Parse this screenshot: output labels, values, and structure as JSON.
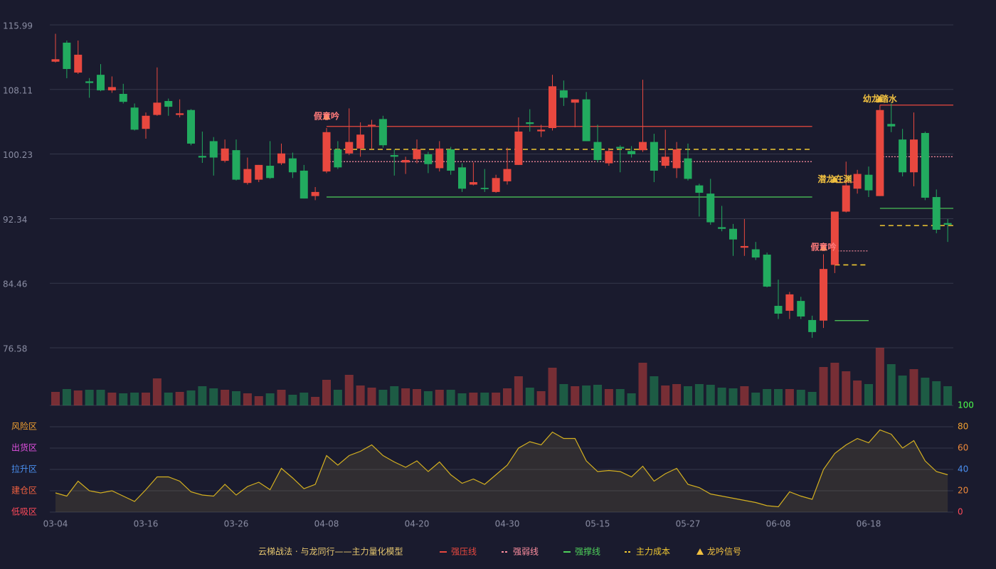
{
  "chart_data": {
    "type": "candlestick",
    "categories": [
      "03-04",
      null,
      null,
      null,
      null,
      null,
      null,
      null,
      "03-16",
      null,
      null,
      null,
      null,
      null,
      null,
      null,
      "03-26",
      null,
      null,
      null,
      null,
      null,
      null,
      null,
      "04-08",
      null,
      null,
      null,
      null,
      null,
      null,
      null,
      "04-20",
      null,
      null,
      null,
      null,
      null,
      null,
      null,
      "04-30",
      null,
      null,
      null,
      null,
      null,
      null,
      null,
      "05-15",
      null,
      null,
      null,
      null,
      null,
      null,
      null,
      "05-27",
      null,
      null,
      null,
      null,
      null,
      null,
      null,
      "06-08",
      null,
      null,
      null,
      null,
      null,
      null,
      null,
      "06-18",
      null,
      null,
      null,
      null,
      null,
      null,
      null
    ],
    "open": [
      111.5,
      113.82,
      110.17,
      109.1,
      109.9,
      108.0,
      107.57,
      105.9,
      103.3,
      105.0,
      106.7,
      105.0,
      105.6,
      100.0,
      101.8,
      99.4,
      100.7,
      96.7,
      97.1,
      98.8,
      99.1,
      99.7,
      98.2,
      95.1,
      98.1,
      100.8,
      100.3,
      100.9,
      103.7,
      104.5,
      100.1,
      99.2,
      99.6,
      100.2,
      98.5,
      100.8,
      98.6,
      96.5,
      96.1,
      95.6,
      96.9,
      98.9,
      104.1,
      103.0,
      103.4,
      108.0,
      106.5,
      106.9,
      101.7,
      99.1,
      101.1,
      100.6,
      100.7,
      101.7,
      98.8,
      98.5,
      99.7,
      96.4,
      95.4,
      91.3,
      91.1,
      88.8,
      88.6,
      87.95,
      81.7,
      81.1,
      82.3,
      79.97,
      79.9,
      86.7,
      93.2,
      96.0,
      97.7,
      95.1,
      103.9,
      102.0,
      98.0,
      102.8,
      94.98,
      91.8
    ],
    "high": [
      114.9,
      114.08,
      114.08,
      109.5,
      111.2,
      109.7,
      108.8,
      106.4,
      105.3,
      110.8,
      107.0,
      106.9,
      105.7,
      102.97,
      102.3,
      102.0,
      102.0,
      99.8,
      98.9,
      101.8,
      101.5,
      100.4,
      98.9,
      96.2,
      103.4,
      101.8,
      105.8,
      104.1,
      104.4,
      104.9,
      100.8,
      99.9,
      102.0,
      100.5,
      101.8,
      101.1,
      99.1,
      99.2,
      98.4,
      97.7,
      101.0,
      104.7,
      105.7,
      103.8,
      109.9,
      109.2,
      106.9,
      107.8,
      103.8,
      100.97,
      101.3,
      101.2,
      109.3,
      102.7,
      103.2,
      101.7,
      101.5,
      96.6,
      97.2,
      93.9,
      91.7,
      92.3,
      89.5,
      88.2,
      84.9,
      83.4,
      82.8,
      80.5,
      88.0,
      93.2,
      99.3,
      98.3,
      98.7,
      106.2,
      106.4,
      103.3,
      105.3,
      102.97,
      95.9,
      92.3
    ],
    "low": [
      111.4,
      109.48,
      110.0,
      107.1,
      107.9,
      107.7,
      106.4,
      103.1,
      102.1,
      104.9,
      104.9,
      104.7,
      101.3,
      99.15,
      97.6,
      99.2,
      97.0,
      96.5,
      96.8,
      97.2,
      98.9,
      97.3,
      94.8,
      94.6,
      97.9,
      98.4,
      100.1,
      99.9,
      100.8,
      101.0,
      97.6,
      97.8,
      99.1,
      97.9,
      98.1,
      97.7,
      95.6,
      96.4,
      95.6,
      95.5,
      96.5,
      98.9,
      102.97,
      102.3,
      103.1,
      106.1,
      103.5,
      101.8,
      99.2,
      98.8,
      98.0,
      99.8,
      100.5,
      96.8,
      98.5,
      97.3,
      97.0,
      92.6,
      91.6,
      90.8,
      87.8,
      87.8,
      87.3,
      83.96,
      80.1,
      80.1,
      80.1,
      77.8,
      79.0,
      85.7,
      93.1,
      95.4,
      94.98,
      95.1,
      102.9,
      97.5,
      96.3,
      94.6,
      90.56,
      89.5
    ],
    "close": [
      111.8,
      110.61,
      112.35,
      108.9,
      108.0,
      108.4,
      106.6,
      103.2,
      104.9,
      106.5,
      106.0,
      105.2,
      101.5,
      99.8,
      99.8,
      100.9,
      97.1,
      98.4,
      98.9,
      97.3,
      100.3,
      98.0,
      94.8,
      95.6,
      102.9,
      98.6,
      101.7,
      102.6,
      103.8,
      101.3,
      99.9,
      99.5,
      100.8,
      99.0,
      100.9,
      98.2,
      96.0,
      96.8,
      95.95,
      97.3,
      98.4,
      102.97,
      103.9,
      103.2,
      108.5,
      107.1,
      106.9,
      101.8,
      99.5,
      100.6,
      100.9,
      100.2,
      101.7,
      98.2,
      99.9,
      100.8,
      97.2,
      95.5,
      91.9,
      91.1,
      89.8,
      89.0,
      87.6,
      84.05,
      80.75,
      83.1,
      80.4,
      78.5,
      86.2,
      93.2,
      96.4,
      97.8,
      95.8,
      105.6,
      103.6,
      98.0,
      102.0,
      94.9,
      90.99,
      91.6
    ],
    "up_color": "#e8483f",
    "down_color": "#22ab5f",
    "ylim": [
      76.58,
      115.99
    ],
    "yticks": [
      76.58,
      84.46,
      92.34,
      100.23,
      108.11,
      115.99
    ],
    "grid": true,
    "volume": {
      "type": "bar",
      "values": [
        19,
        23,
        21,
        22,
        22,
        18,
        17,
        18,
        18,
        38,
        18,
        19,
        21,
        27,
        24,
        22,
        20,
        17,
        13,
        17,
        22,
        15,
        18,
        12,
        36,
        22,
        43,
        28,
        25,
        22,
        27,
        24,
        23,
        20,
        22,
        22,
        17,
        18,
        18,
        18,
        24,
        41,
        25,
        20,
        53,
        30,
        27,
        28,
        29,
        23,
        23,
        17,
        60,
        41,
        28,
        30,
        27,
        30,
        29,
        25,
        24,
        27,
        18,
        23,
        23,
        23,
        22,
        19,
        54,
        60,
        48,
        35,
        30,
        81,
        58,
        42,
        51,
        39,
        34,
        27
      ]
    },
    "overlays": [
      {
        "name": "强压线",
        "color": "#e8483f",
        "style": "solid",
        "segments": [
          {
            "x": [
              24,
              67
            ],
            "value": 103.6
          },
          {
            "x": [
              69,
              71
            ],
            "value": 96.8
          },
          {
            "x": [
              73,
              79
            ],
            "value": 106.2
          }
        ]
      },
      {
        "name": "强弱线",
        "color": "#ff8fa0",
        "style": "dotted",
        "segments": [
          {
            "x": [
              24,
              67
            ],
            "value": 99.3
          },
          {
            "x": [
              69,
              72
            ],
            "value": 88.4
          },
          {
            "x": [
              73,
              79
            ],
            "value": 99.9
          }
        ]
      },
      {
        "name": "强撑线",
        "color": "#4ed05a",
        "style": "solid",
        "segments": [
          {
            "x": [
              24,
              67
            ],
            "value": 94.98
          },
          {
            "x": [
              69,
              72
            ],
            "value": 79.9
          },
          {
            "x": [
              73,
              79
            ],
            "value": 93.6
          }
        ]
      },
      {
        "name": "主力成本",
        "color": "#f0c832",
        "style": "dashed",
        "segments": [
          {
            "x": [
              24,
              67
            ],
            "value": 100.8
          },
          {
            "x": [
              69,
              72
            ],
            "value": 86.7
          },
          {
            "x": [
              73,
              79
            ],
            "value": 91.5
          }
        ]
      }
    ],
    "signals": {
      "name": "龙吟信号",
      "color": "#f0c040",
      "marks": [
        {
          "x": 24,
          "y": 104.8,
          "label": "假意吟",
          "color": "#ff7a7a"
        },
        {
          "x": 68,
          "y": 88.8,
          "label": "假意吟",
          "color": "#ff7a7a"
        },
        {
          "x": 69,
          "y": 97.1,
          "label": "潜龙在渊",
          "color": "#f0c040"
        },
        {
          "x": 73,
          "y": 106.9,
          "label": "幼龙踏水",
          "color": "#f0c040"
        }
      ]
    },
    "indicator": {
      "type": "area",
      "color": "#d4b020",
      "values": [
        18,
        15,
        29,
        20,
        18,
        20,
        15,
        10,
        21,
        33,
        33,
        29,
        19,
        16,
        15,
        26,
        16,
        24,
        28,
        21,
        41,
        32,
        22,
        26,
        53,
        44,
        53,
        57,
        63,
        53,
        47,
        42,
        48,
        38,
        47,
        35,
        27,
        31,
        26,
        35,
        44,
        60,
        66,
        63,
        75,
        69,
        69,
        48,
        38,
        39,
        38,
        33,
        43,
        29,
        36,
        41,
        26,
        23,
        17,
        15,
        13,
        11,
        9,
        6,
        5,
        19,
        15,
        12,
        40,
        55,
        63,
        69,
        65,
        77,
        73,
        60,
        67,
        48,
        38,
        35
      ],
      "y2lim": [
        0,
        100
      ],
      "y2ticks": [
        0,
        20,
        40,
        60,
        80,
        100
      ],
      "tick_colors": [
        "#ff4a5a",
        "#f08a3a",
        "#4a8ff0",
        "#f08a3a",
        "#f0a030",
        "#4cff4c"
      ],
      "zones": [
        {
          "label": "低吸区",
          "value": 0,
          "color": "#ff4a5a"
        },
        {
          "label": "建仓区",
          "value": 20,
          "color": "#f06040"
        },
        {
          "label": "拉升区",
          "value": 40,
          "color": "#4a8ff0"
        },
        {
          "label": "出货区",
          "value": 60,
          "color": "#e050e0"
        },
        {
          "label": "风险区",
          "value": 80,
          "color": "#f0a030"
        }
      ]
    },
    "caption": "云梯战法 · 与龙同行——主力量化模型"
  }
}
